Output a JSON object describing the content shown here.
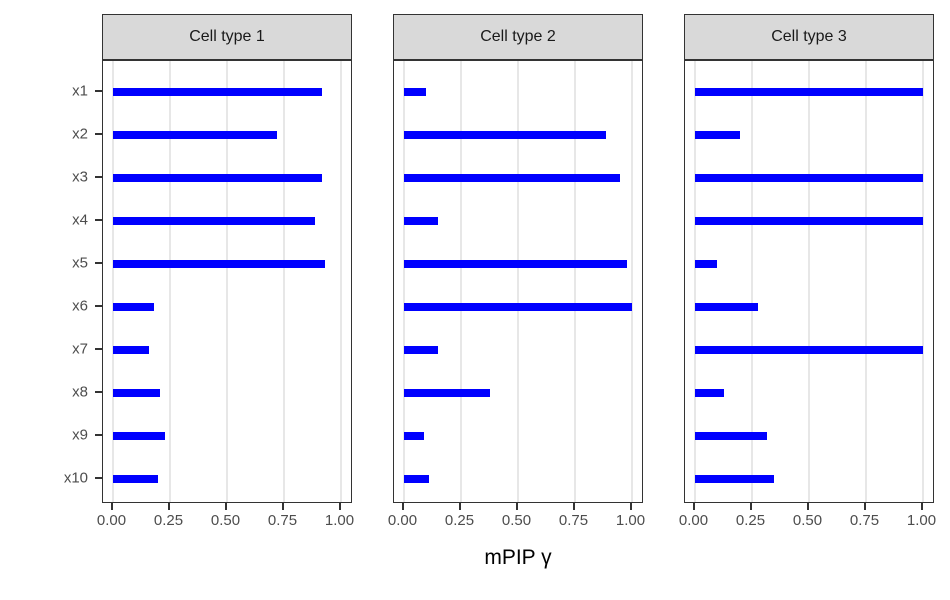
{
  "chart_data": {
    "type": "bar",
    "orientation": "horizontal",
    "title": "",
    "xlabel": "mPIP γ",
    "ylabel": "",
    "xlim": [
      0,
      1
    ],
    "grid": true,
    "legend": "none",
    "x_ticks": [
      {
        "value": 0,
        "label": "0.00"
      },
      {
        "value": 0.25,
        "label": "0.25"
      },
      {
        "value": 0.5,
        "label": "0.50"
      },
      {
        "value": 0.75,
        "label": "0.75"
      },
      {
        "value": 1,
        "label": "1.00"
      }
    ],
    "categories": [
      "x1",
      "x2",
      "x3",
      "x4",
      "x5",
      "x6",
      "x7",
      "x8",
      "x9",
      "x10"
    ],
    "facets": [
      {
        "label": "Cell type 1",
        "values": [
          0.92,
          0.72,
          0.92,
          0.89,
          0.93,
          0.18,
          0.16,
          0.21,
          0.23,
          0.2
        ]
      },
      {
        "label": "Cell type 2",
        "values": [
          0.1,
          0.89,
          0.95,
          0.15,
          0.98,
          1.0,
          0.15,
          0.38,
          0.09,
          0.11
        ]
      },
      {
        "label": "Cell type 3",
        "values": [
          1.0,
          0.2,
          1.0,
          1.0,
          0.1,
          0.28,
          1.0,
          0.13,
          0.32,
          0.35
        ]
      }
    ],
    "colors": {
      "bar": "#0000FF",
      "strip_background": "#D9D9D9",
      "panel_border": "#333333",
      "gridline": "#E7E7E7",
      "axis_text": "#4D4D4D",
      "axis_title": "#000000"
    }
  }
}
